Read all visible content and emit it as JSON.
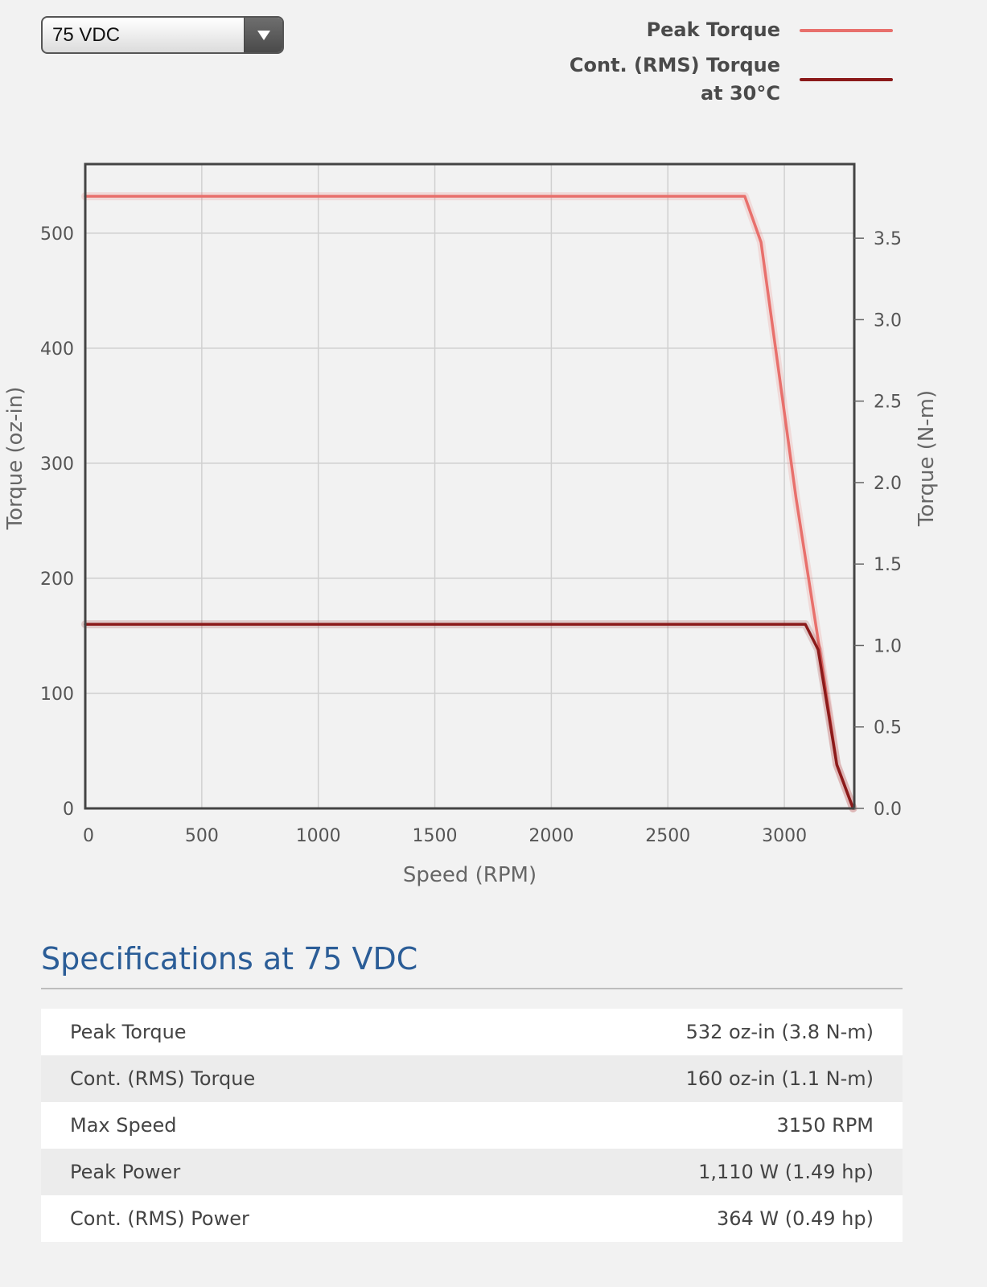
{
  "selector": {
    "selected_value": "75 VDC"
  },
  "legend": [
    {
      "lines": [
        "Peak Torque"
      ],
      "color": "#e8706c"
    },
    {
      "lines": [
        "Cont. (RMS) Torque",
        "at 30°C"
      ],
      "color": "#8b1a1a"
    }
  ],
  "chart_data": {
    "type": "line",
    "xlabel": "Speed (RPM)",
    "ylabel": "Torque (oz-in)",
    "y2label": "Torque (N-m)",
    "xlim": [
      0,
      3300
    ],
    "ylim": [
      0,
      560
    ],
    "y2lim": [
      0,
      3.955
    ],
    "xticks": [
      0,
      500,
      1000,
      1500,
      2000,
      2500,
      3000
    ],
    "yticks": [
      0,
      100,
      200,
      300,
      400,
      500
    ],
    "y2ticks": [
      "0.0",
      "0.5",
      "1.0",
      "1.5",
      "2.0",
      "2.5",
      "3.0",
      "3.5"
    ],
    "grid": true,
    "legend_position": "top-right",
    "series": [
      {
        "name": "Peak Torque",
        "color": "#e8706c",
        "x": [
          0,
          2830,
          2900,
          3050,
          3150,
          3225,
          3295
        ],
        "y": [
          532,
          532,
          492,
          270,
          140,
          38,
          0
        ]
      },
      {
        "name": "Cont. (RMS) Torque at 30°C",
        "color": "#8b1a1a",
        "x": [
          0,
          3090,
          3145,
          3225,
          3295
        ],
        "y": [
          160,
          160,
          138,
          38,
          0
        ]
      }
    ]
  },
  "specs": {
    "title": "Specifications at 75 VDC",
    "rows": [
      {
        "label": "Peak Torque",
        "value": "532 oz-in (3.8 N-m)"
      },
      {
        "label": "Cont. (RMS) Torque",
        "value": "160 oz-in (1.1 N-m)"
      },
      {
        "label": "Max Speed",
        "value": "3150 RPM"
      },
      {
        "label": "Peak Power",
        "value": "1,110 W (1.49 hp)"
      },
      {
        "label": "Cont. (RMS) Power",
        "value": "364 W (0.49 hp)"
      }
    ]
  }
}
